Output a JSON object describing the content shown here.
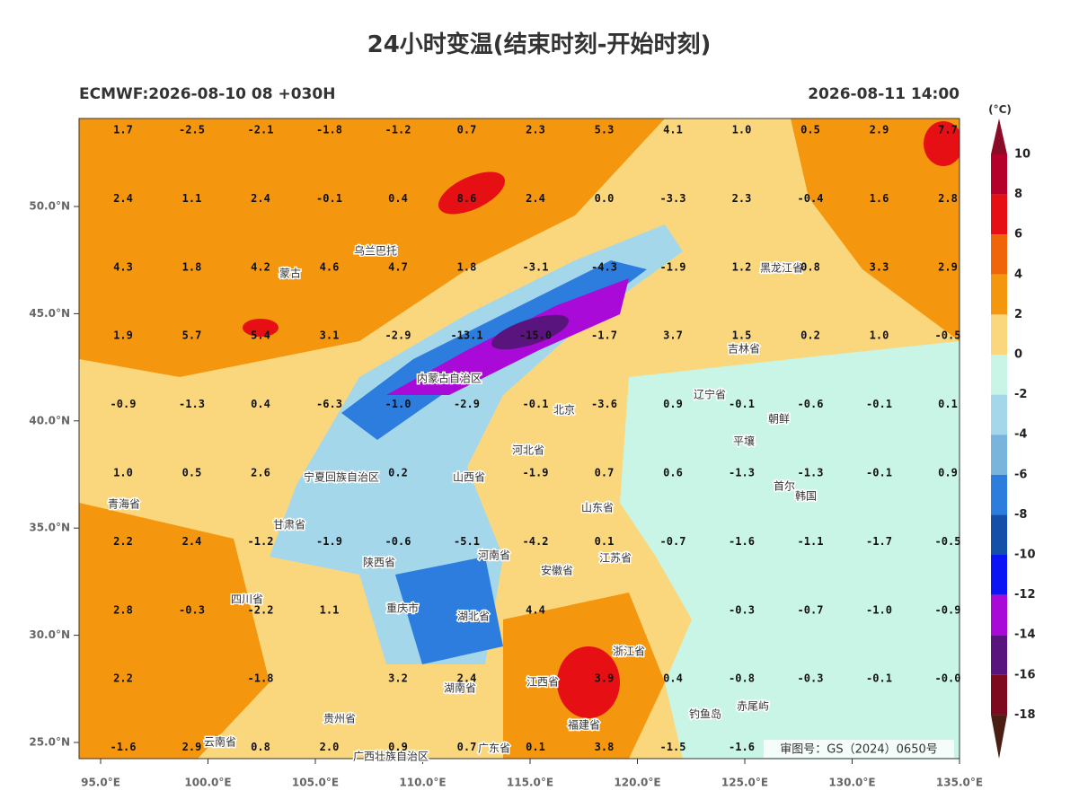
{
  "title": "24小时变温(结束时刻-开始时刻)",
  "subtitle_left": "ECMWF:2026-08-10 08 +030H",
  "subtitle_right": "2026-08-11 14:00",
  "x_ticks": [
    "95.0°E",
    "100.0°E",
    "105.0°E",
    "110.0°E",
    "115.0°E",
    "120.0°E",
    "125.0°E",
    "130.0°E",
    "135.0°E"
  ],
  "y_ticks": [
    "50.0°N",
    "45.0°N",
    "40.0°N",
    "35.0°N",
    "30.0°N",
    "25.0°N"
  ],
  "values": [
    [
      "1.7",
      "-2.5",
      "-2.1",
      "-1.8",
      "-1.2",
      "0.7",
      "2.3",
      "5.3",
      "4.1",
      "1.0",
      "0.5",
      "2.9",
      "7.7"
    ],
    [
      "2.4",
      "1.1",
      "2.4",
      "-0.1",
      "0.4",
      "8.6",
      "2.4",
      "0.0",
      "-3.3",
      "2.3",
      "-0.4",
      "1.6",
      "2.8"
    ],
    [
      "4.3",
      "1.8",
      "4.2",
      "4.6",
      "4.7",
      "1.8",
      "-3.1",
      "-4.3",
      "-1.9",
      "1.2",
      "0.8",
      "3.3",
      "2.9"
    ],
    [
      "1.9",
      "5.7",
      "5.4",
      "3.1",
      "-2.9",
      "-13.1",
      "-15.0",
      "-1.7",
      "3.7",
      "1.5",
      "0.2",
      "1.0",
      "-0.5"
    ],
    [
      "-0.9",
      "-1.3",
      "0.4",
      "-6.3",
      "-1.0",
      "-2.9",
      "-0.1",
      "-3.6",
      "0.9",
      "-0.1",
      "-0.6",
      "-0.1",
      "0.1"
    ],
    [
      "1.0",
      "0.5",
      "2.6",
      null,
      "0.2",
      null,
      "-1.9",
      "0.7",
      "0.6",
      "-1.3",
      "-1.3",
      "-0.1",
      "0.9"
    ],
    [
      "2.2",
      "2.4",
      "-1.2",
      "-1.9",
      "-0.6",
      "-5.1",
      "-4.2",
      "0.1",
      "-0.7",
      "-1.6",
      "-1.1",
      "-1.7",
      "-0.5"
    ],
    [
      "2.8",
      "-0.3",
      "-2.2",
      "1.1",
      null,
      null,
      "4.4",
      null,
      null,
      "-0.3",
      "-0.7",
      "-1.0",
      "-0.9"
    ],
    [
      "2.2",
      null,
      "-1.8",
      null,
      "3.2",
      "2.4",
      null,
      "3.9",
      "0.4",
      "-0.8",
      "-0.3",
      "-0.1",
      "-0.0"
    ],
    [
      "-1.6",
      "2.9",
      "0.8",
      "2.0",
      "0.9",
      "0.7",
      "0.1",
      "3.8",
      "-1.5",
      "-1.6",
      null,
      null,
      null
    ]
  ],
  "places": [
    "乌兰巴托",
    "蒙古",
    "黑龙江省",
    "吉林省",
    "内蒙古自治区",
    "辽宁省",
    "北京",
    "朝鲜",
    "平壤",
    "首尔",
    "韩国",
    "宁夏回族自治区",
    "河北省",
    "山西省",
    "山东省",
    "青海省",
    "甘肃省",
    "陕西省",
    "河南省",
    "安徽省",
    "江苏省",
    "四川省",
    "重庆市",
    "湖北省",
    "浙江省",
    "湖南省",
    "江西省",
    "贵州省",
    "福建省",
    "钓鱼岛",
    "赤尾屿",
    "云南省",
    "广西壮族自治区",
    "广东省"
  ],
  "watermark": "审图号：GS（2024）0650号",
  "colorbar": {
    "unit": "(°C)",
    "ticks": [
      10,
      8,
      6,
      4,
      2,
      0,
      -2,
      -4,
      -6,
      -8,
      -10,
      -12,
      -14,
      -16,
      -18
    ],
    "colors": [
      "#8a0c26",
      "#b4002a",
      "#e60f14",
      "#f0640a",
      "#f5960f",
      "#fad77d",
      "#c8f5e6",
      "#a5d7eb",
      "#78b4dc",
      "#2d7dde",
      "#1450aa",
      "#0a14f5",
      "#aa0ad7",
      "#5a147d",
      "#7d0a1e",
      "#4b1e14"
    ]
  }
}
